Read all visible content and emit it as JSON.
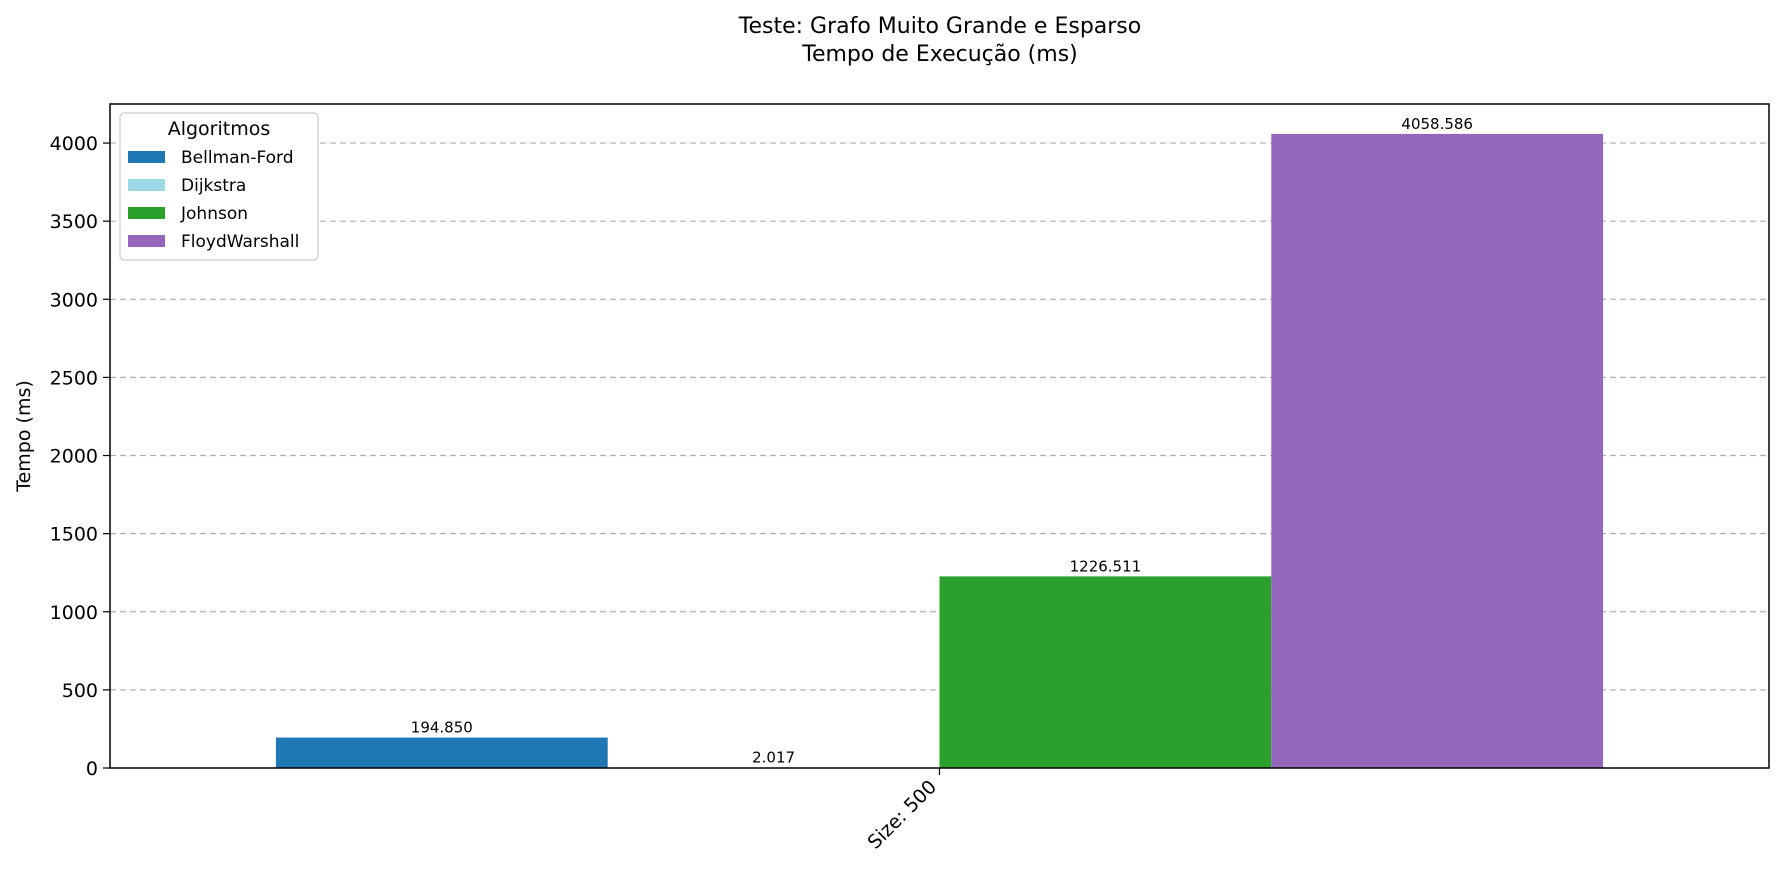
{
  "chart_data": {
    "type": "bar",
    "title_line1": "Teste: Grafo Muito Grande e Esparso",
    "title_line2": "Tempo de Execução (ms)",
    "xlabel": "",
    "ylabel": "Tempo (ms)",
    "categories": [
      "Size: 500"
    ],
    "ylim": [
      0,
      4250
    ],
    "yticks": [
      0,
      500,
      1000,
      1500,
      2000,
      2500,
      3000,
      3500,
      4000
    ],
    "grid": "y-dashed",
    "legend_title": "Algoritmos",
    "legend_position": "top-left",
    "series": [
      {
        "name": "Bellman-Ford",
        "color": "#1f77b4",
        "values": [
          194.85
        ],
        "label": "194.850"
      },
      {
        "name": "Dijkstra",
        "color": "#9edae5",
        "values": [
          2.017
        ],
        "label": "2.017"
      },
      {
        "name": "Johnson",
        "color": "#2ca02c",
        "values": [
          1226.511
        ],
        "label": "1226.511"
      },
      {
        "name": "FloydWarshall",
        "color": "#9467bd",
        "values": [
          4058.586
        ],
        "label": "4058.586"
      }
    ]
  }
}
